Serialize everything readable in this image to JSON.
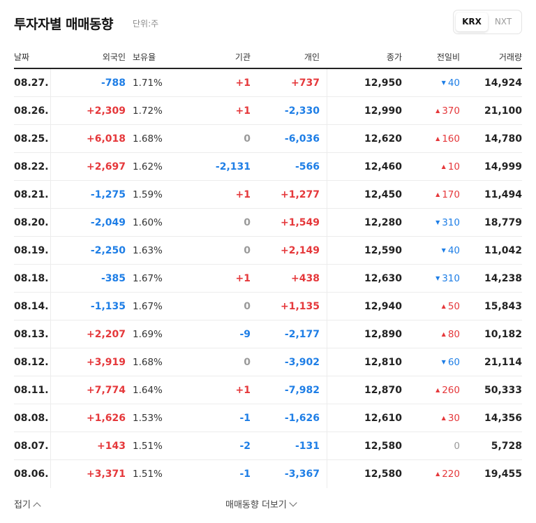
{
  "header": {
    "title": "투자자별 매매동향",
    "unit": "단위:주"
  },
  "market_toggle": {
    "active": "KRX",
    "inactive": "NXT"
  },
  "columns": [
    "날짜",
    "외국인",
    "보유율",
    "기관",
    "개인",
    "종가",
    "전일비",
    "거래량"
  ],
  "rows": [
    {
      "date": "08.27.",
      "foreign": "-788",
      "hold": "1.71%",
      "inst": "+1",
      "indiv": "+737",
      "close": "12,950",
      "change": "40",
      "dir": "down",
      "volume": "14,924"
    },
    {
      "date": "08.26.",
      "foreign": "+2,309",
      "hold": "1.72%",
      "inst": "+1",
      "indiv": "-2,330",
      "close": "12,990",
      "change": "370",
      "dir": "up",
      "volume": "21,100"
    },
    {
      "date": "08.25.",
      "foreign": "+6,018",
      "hold": "1.68%",
      "inst": "0",
      "indiv": "-6,036",
      "close": "12,620",
      "change": "160",
      "dir": "up",
      "volume": "14,780"
    },
    {
      "date": "08.22.",
      "foreign": "+2,697",
      "hold": "1.62%",
      "inst": "-2,131",
      "indiv": "-566",
      "close": "12,460",
      "change": "10",
      "dir": "up",
      "volume": "14,999"
    },
    {
      "date": "08.21.",
      "foreign": "-1,275",
      "hold": "1.59%",
      "inst": "+1",
      "indiv": "+1,277",
      "close": "12,450",
      "change": "170",
      "dir": "up",
      "volume": "11,494"
    },
    {
      "date": "08.20.",
      "foreign": "-2,049",
      "hold": "1.60%",
      "inst": "0",
      "indiv": "+1,549",
      "close": "12,280",
      "change": "310",
      "dir": "down",
      "volume": "18,779"
    },
    {
      "date": "08.19.",
      "foreign": "-2,250",
      "hold": "1.63%",
      "inst": "0",
      "indiv": "+2,149",
      "close": "12,590",
      "change": "40",
      "dir": "down",
      "volume": "11,042"
    },
    {
      "date": "08.18.",
      "foreign": "-385",
      "hold": "1.67%",
      "inst": "+1",
      "indiv": "+438",
      "close": "12,630",
      "change": "310",
      "dir": "down",
      "volume": "14,238"
    },
    {
      "date": "08.14.",
      "foreign": "-1,135",
      "hold": "1.67%",
      "inst": "0",
      "indiv": "+1,135",
      "close": "12,940",
      "change": "50",
      "dir": "up",
      "volume": "15,843"
    },
    {
      "date": "08.13.",
      "foreign": "+2,207",
      "hold": "1.69%",
      "inst": "-9",
      "indiv": "-2,177",
      "close": "12,890",
      "change": "80",
      "dir": "up",
      "volume": "10,182"
    },
    {
      "date": "08.12.",
      "foreign": "+3,919",
      "hold": "1.68%",
      "inst": "0",
      "indiv": "-3,902",
      "close": "12,810",
      "change": "60",
      "dir": "down",
      "volume": "21,114"
    },
    {
      "date": "08.11.",
      "foreign": "+7,774",
      "hold": "1.64%",
      "inst": "+1",
      "indiv": "-7,982",
      "close": "12,870",
      "change": "260",
      "dir": "up",
      "volume": "50,333"
    },
    {
      "date": "08.08.",
      "foreign": "+1,626",
      "hold": "1.53%",
      "inst": "-1",
      "indiv": "-1,626",
      "close": "12,610",
      "change": "30",
      "dir": "up",
      "volume": "14,356"
    },
    {
      "date": "08.07.",
      "foreign": "+143",
      "hold": "1.51%",
      "inst": "-2",
      "indiv": "-131",
      "close": "12,580",
      "change": "0",
      "dir": "flat",
      "volume": "5,728"
    },
    {
      "date": "08.06.",
      "foreign": "+3,371",
      "hold": "1.51%",
      "inst": "-1",
      "indiv": "-3,367",
      "close": "12,580",
      "change": "220",
      "dir": "up",
      "volume": "19,455"
    }
  ],
  "footer": {
    "fold": "접기",
    "more": "매매동향 더보기"
  },
  "colors": {
    "up": "#e5383b",
    "down": "#1e7ee6",
    "flat": "#9a9a9a",
    "icon_up": "triangle-up-icon",
    "icon_down": "triangle-down-icon"
  }
}
